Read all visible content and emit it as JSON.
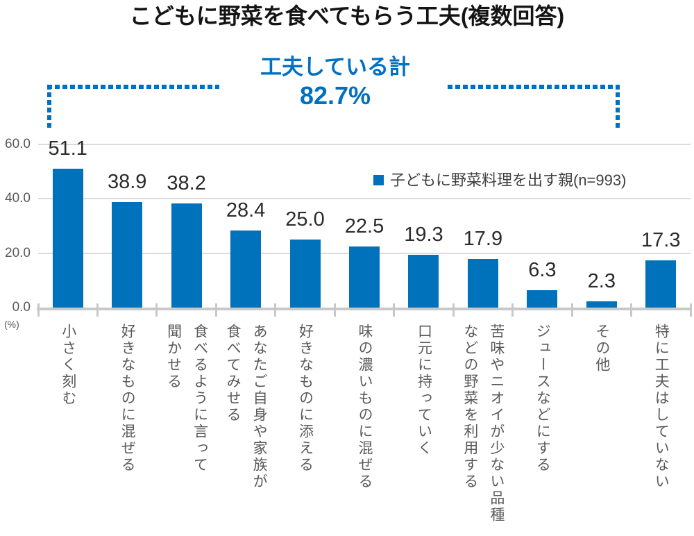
{
  "title": "こどもに野菜を食べてもらう工夫(複数回答)",
  "annotation": {
    "label": "工夫している計",
    "value": "82.7%"
  },
  "legend": {
    "label": "子どもに野菜料理を出す親(n=993)"
  },
  "y_axis": {
    "unit": "(%)"
  },
  "colors": {
    "bar": "#0072BC",
    "accent": "#0070C0",
    "grid": "#DBDBDB",
    "axis": "#C8C8C8",
    "value_text": "#2B2B2B",
    "muted_text": "#595959"
  },
  "chart_data": {
    "type": "bar",
    "title": "こどもに野菜を食べてもらう工夫(複数回答)",
    "series_name": "子どもに野菜料理を出す親(n=993)",
    "categories": [
      "小さく刻む",
      "好きなものに混ぜる",
      "食べるように言って\n聞かせる",
      "あなたご自身や家族が\n食べてみせる",
      "好きなものに添える",
      "味の濃いものに混ぜる",
      "口元に持っていく",
      "苦味やニオイが少ない品種\nなどの野菜を利用する",
      "ジュースなどにする",
      "その他",
      "特に工夫はしていない"
    ],
    "values": [
      51.1,
      38.9,
      38.2,
      28.4,
      25.0,
      22.5,
      19.3,
      17.9,
      6.3,
      2.3,
      17.3
    ],
    "value_labels": [
      "51.1",
      "38.9",
      "38.2",
      "28.4",
      "25.0",
      "22.5",
      "19.3",
      "17.9",
      "6.3",
      "2.3",
      "17.3"
    ],
    "ylabel": "(%)",
    "ylim": [
      0,
      64
    ],
    "yticks": [
      60,
      40,
      20,
      0
    ],
    "ytick_labels": [
      "60.0",
      "40.0",
      "20.0",
      "0.0"
    ],
    "grid": true,
    "legend_position": "inside-top-right",
    "annotation": {
      "text": "工夫している計 82.7%"
    }
  }
}
